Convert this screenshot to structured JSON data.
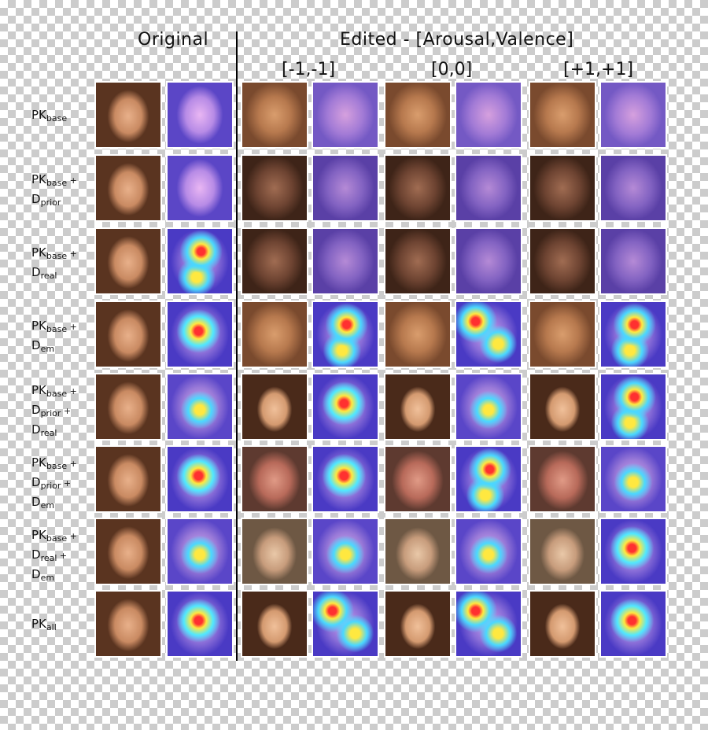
{
  "header": {
    "original": "Original",
    "edited": "Edited - [Arousal,Valence]",
    "cond_neg": "[-1,-1]",
    "cond_zero": "[0,0]",
    "cond_pos": "[+1,+1]"
  },
  "rows": [
    {
      "lines": [
        [
          "PK",
          "base"
        ]
      ],
      "faces": [
        "blur",
        "blurh",
        "blur",
        "blurh",
        "blur",
        "blurh"
      ],
      "orig2": "origh"
    },
    {
      "lines": [
        [
          "PK",
          "base",
          " +"
        ],
        [
          "D",
          "prior"
        ]
      ],
      "faces": [
        "dark",
        "darkh",
        "dark",
        "darkh",
        "dark",
        "darkh"
      ],
      "orig2": "origh"
    },
    {
      "lines": [
        [
          "PK",
          "base",
          " +"
        ],
        [
          "D",
          "real"
        ]
      ],
      "faces": [
        "dark",
        "darkh",
        "dark",
        "darkh",
        "dark",
        "darkh"
      ],
      "orig2": "heat2"
    },
    {
      "lines": [
        [
          "PK",
          "base",
          " +"
        ],
        [
          "D",
          "em"
        ]
      ],
      "faces": [
        "blur",
        "heat2",
        "blur",
        "heat4",
        "blur",
        "heat2"
      ],
      "orig2": "heat1"
    },
    {
      "lines": [
        [
          "PK",
          "base",
          " +"
        ],
        [
          "D",
          "prior",
          " +"
        ],
        [
          "D",
          "real"
        ]
      ],
      "faces": [
        "girl",
        "heat1",
        "girl",
        "heat3",
        "girl",
        "heat2"
      ],
      "orig2": "heat3"
    },
    {
      "lines": [
        [
          "PK",
          "base",
          " +"
        ],
        [
          "D",
          "prior",
          " +"
        ],
        [
          "D",
          "em"
        ]
      ],
      "faces": [
        "man",
        "heat1",
        "man",
        "heat2",
        "man",
        "heat3"
      ],
      "orig2": "heat1"
    },
    {
      "lines": [
        [
          "PK",
          "base",
          " +"
        ],
        [
          "D",
          "real",
          " +"
        ],
        [
          "D",
          "em"
        ]
      ],
      "faces": [
        "glass",
        "heat3",
        "glass",
        "heat3",
        "glass",
        "heat1"
      ],
      "orig2": "heat3"
    },
    {
      "lines": [
        [
          "PK",
          "all"
        ]
      ],
      "faces": [
        "girl",
        "heat4",
        "girl",
        "heat4",
        "girl",
        "heat1"
      ],
      "orig2": "heat1"
    }
  ]
}
